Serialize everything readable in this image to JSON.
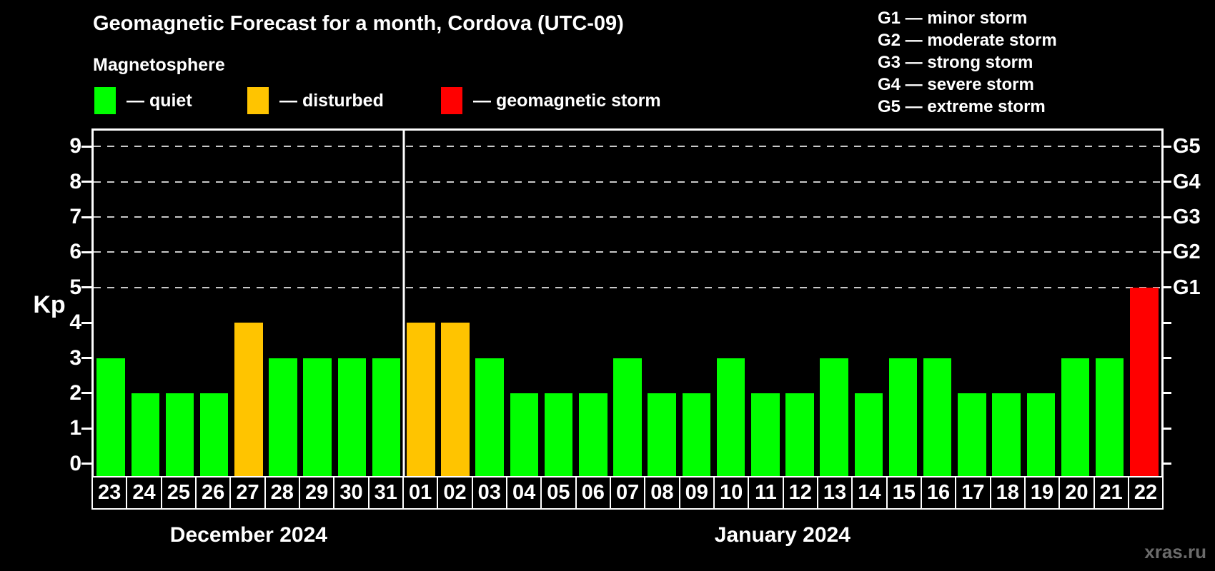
{
  "magnetosphere_label": "Magnetosphere",
  "legend": {
    "items": [
      {
        "label": "— quiet",
        "color": "#00ff00",
        "status": "quiet"
      },
      {
        "label": "— disturbed",
        "color": "#ffc400",
        "status": "disturbed"
      },
      {
        "label": "— geomagnetic storm",
        "color": "#ff0000",
        "status": "storm"
      }
    ]
  },
  "storm_scale_legend": [
    "G1 — minor storm",
    "G2 — moderate storm",
    "G3 — strong storm",
    "G4 — severe storm",
    "G5 — extreme storm"
  ],
  "watermark": "xras.ru",
  "chart_data": {
    "type": "bar",
    "title": "Geomagnetic Forecast for a month, Cordova (UTC-09)",
    "ylabel": "Kp",
    "y_ticks": [
      0,
      1,
      2,
      3,
      4,
      5,
      6,
      7,
      8,
      9
    ],
    "ylim": [
      -0.35,
      9.45
    ],
    "grid": "horizontal dashed lines at Kp 5-9",
    "legend_position": "top",
    "g_levels": [
      {
        "kp": 5,
        "label": "G1"
      },
      {
        "kp": 6,
        "label": "G2"
      },
      {
        "kp": 7,
        "label": "G3"
      },
      {
        "kp": 8,
        "label": "G4"
      },
      {
        "kp": 9,
        "label": "G5"
      }
    ],
    "status_colors": {
      "quiet": "#00ff00",
      "disturbed": "#ffc400",
      "storm": "#ff0000"
    },
    "months": [
      {
        "label": "December 2024",
        "days": [
          {
            "day": "23",
            "kp": 3,
            "status": "quiet"
          },
          {
            "day": "24",
            "kp": 2,
            "status": "quiet"
          },
          {
            "day": "25",
            "kp": 2,
            "status": "quiet"
          },
          {
            "day": "26",
            "kp": 2,
            "status": "quiet"
          },
          {
            "day": "27",
            "kp": 4,
            "status": "disturbed"
          },
          {
            "day": "28",
            "kp": 3,
            "status": "quiet"
          },
          {
            "day": "29",
            "kp": 3,
            "status": "quiet"
          },
          {
            "day": "30",
            "kp": 3,
            "status": "quiet"
          },
          {
            "day": "31",
            "kp": 3,
            "status": "quiet"
          }
        ]
      },
      {
        "label": "January 2024",
        "days": [
          {
            "day": "01",
            "kp": 4,
            "status": "disturbed"
          },
          {
            "day": "02",
            "kp": 4,
            "status": "disturbed"
          },
          {
            "day": "03",
            "kp": 3,
            "status": "quiet"
          },
          {
            "day": "04",
            "kp": 2,
            "status": "quiet"
          },
          {
            "day": "05",
            "kp": 2,
            "status": "quiet"
          },
          {
            "day": "06",
            "kp": 2,
            "status": "quiet"
          },
          {
            "day": "07",
            "kp": 3,
            "status": "quiet"
          },
          {
            "day": "08",
            "kp": 2,
            "status": "quiet"
          },
          {
            "day": "09",
            "kp": 2,
            "status": "quiet"
          },
          {
            "day": "10",
            "kp": 3,
            "status": "quiet"
          },
          {
            "day": "11",
            "kp": 2,
            "status": "quiet"
          },
          {
            "day": "12",
            "kp": 2,
            "status": "quiet"
          },
          {
            "day": "13",
            "kp": 3,
            "status": "quiet"
          },
          {
            "day": "14",
            "kp": 2,
            "status": "quiet"
          },
          {
            "day": "15",
            "kp": 3,
            "status": "quiet"
          },
          {
            "day": "16",
            "kp": 3,
            "status": "quiet"
          },
          {
            "day": "17",
            "kp": 2,
            "status": "quiet"
          },
          {
            "day": "18",
            "kp": 2,
            "status": "quiet"
          },
          {
            "day": "19",
            "kp": 2,
            "status": "quiet"
          },
          {
            "day": "20",
            "kp": 3,
            "status": "quiet"
          },
          {
            "day": "21",
            "kp": 3,
            "status": "quiet"
          },
          {
            "day": "22",
            "kp": 5,
            "status": "storm"
          }
        ]
      }
    ]
  }
}
